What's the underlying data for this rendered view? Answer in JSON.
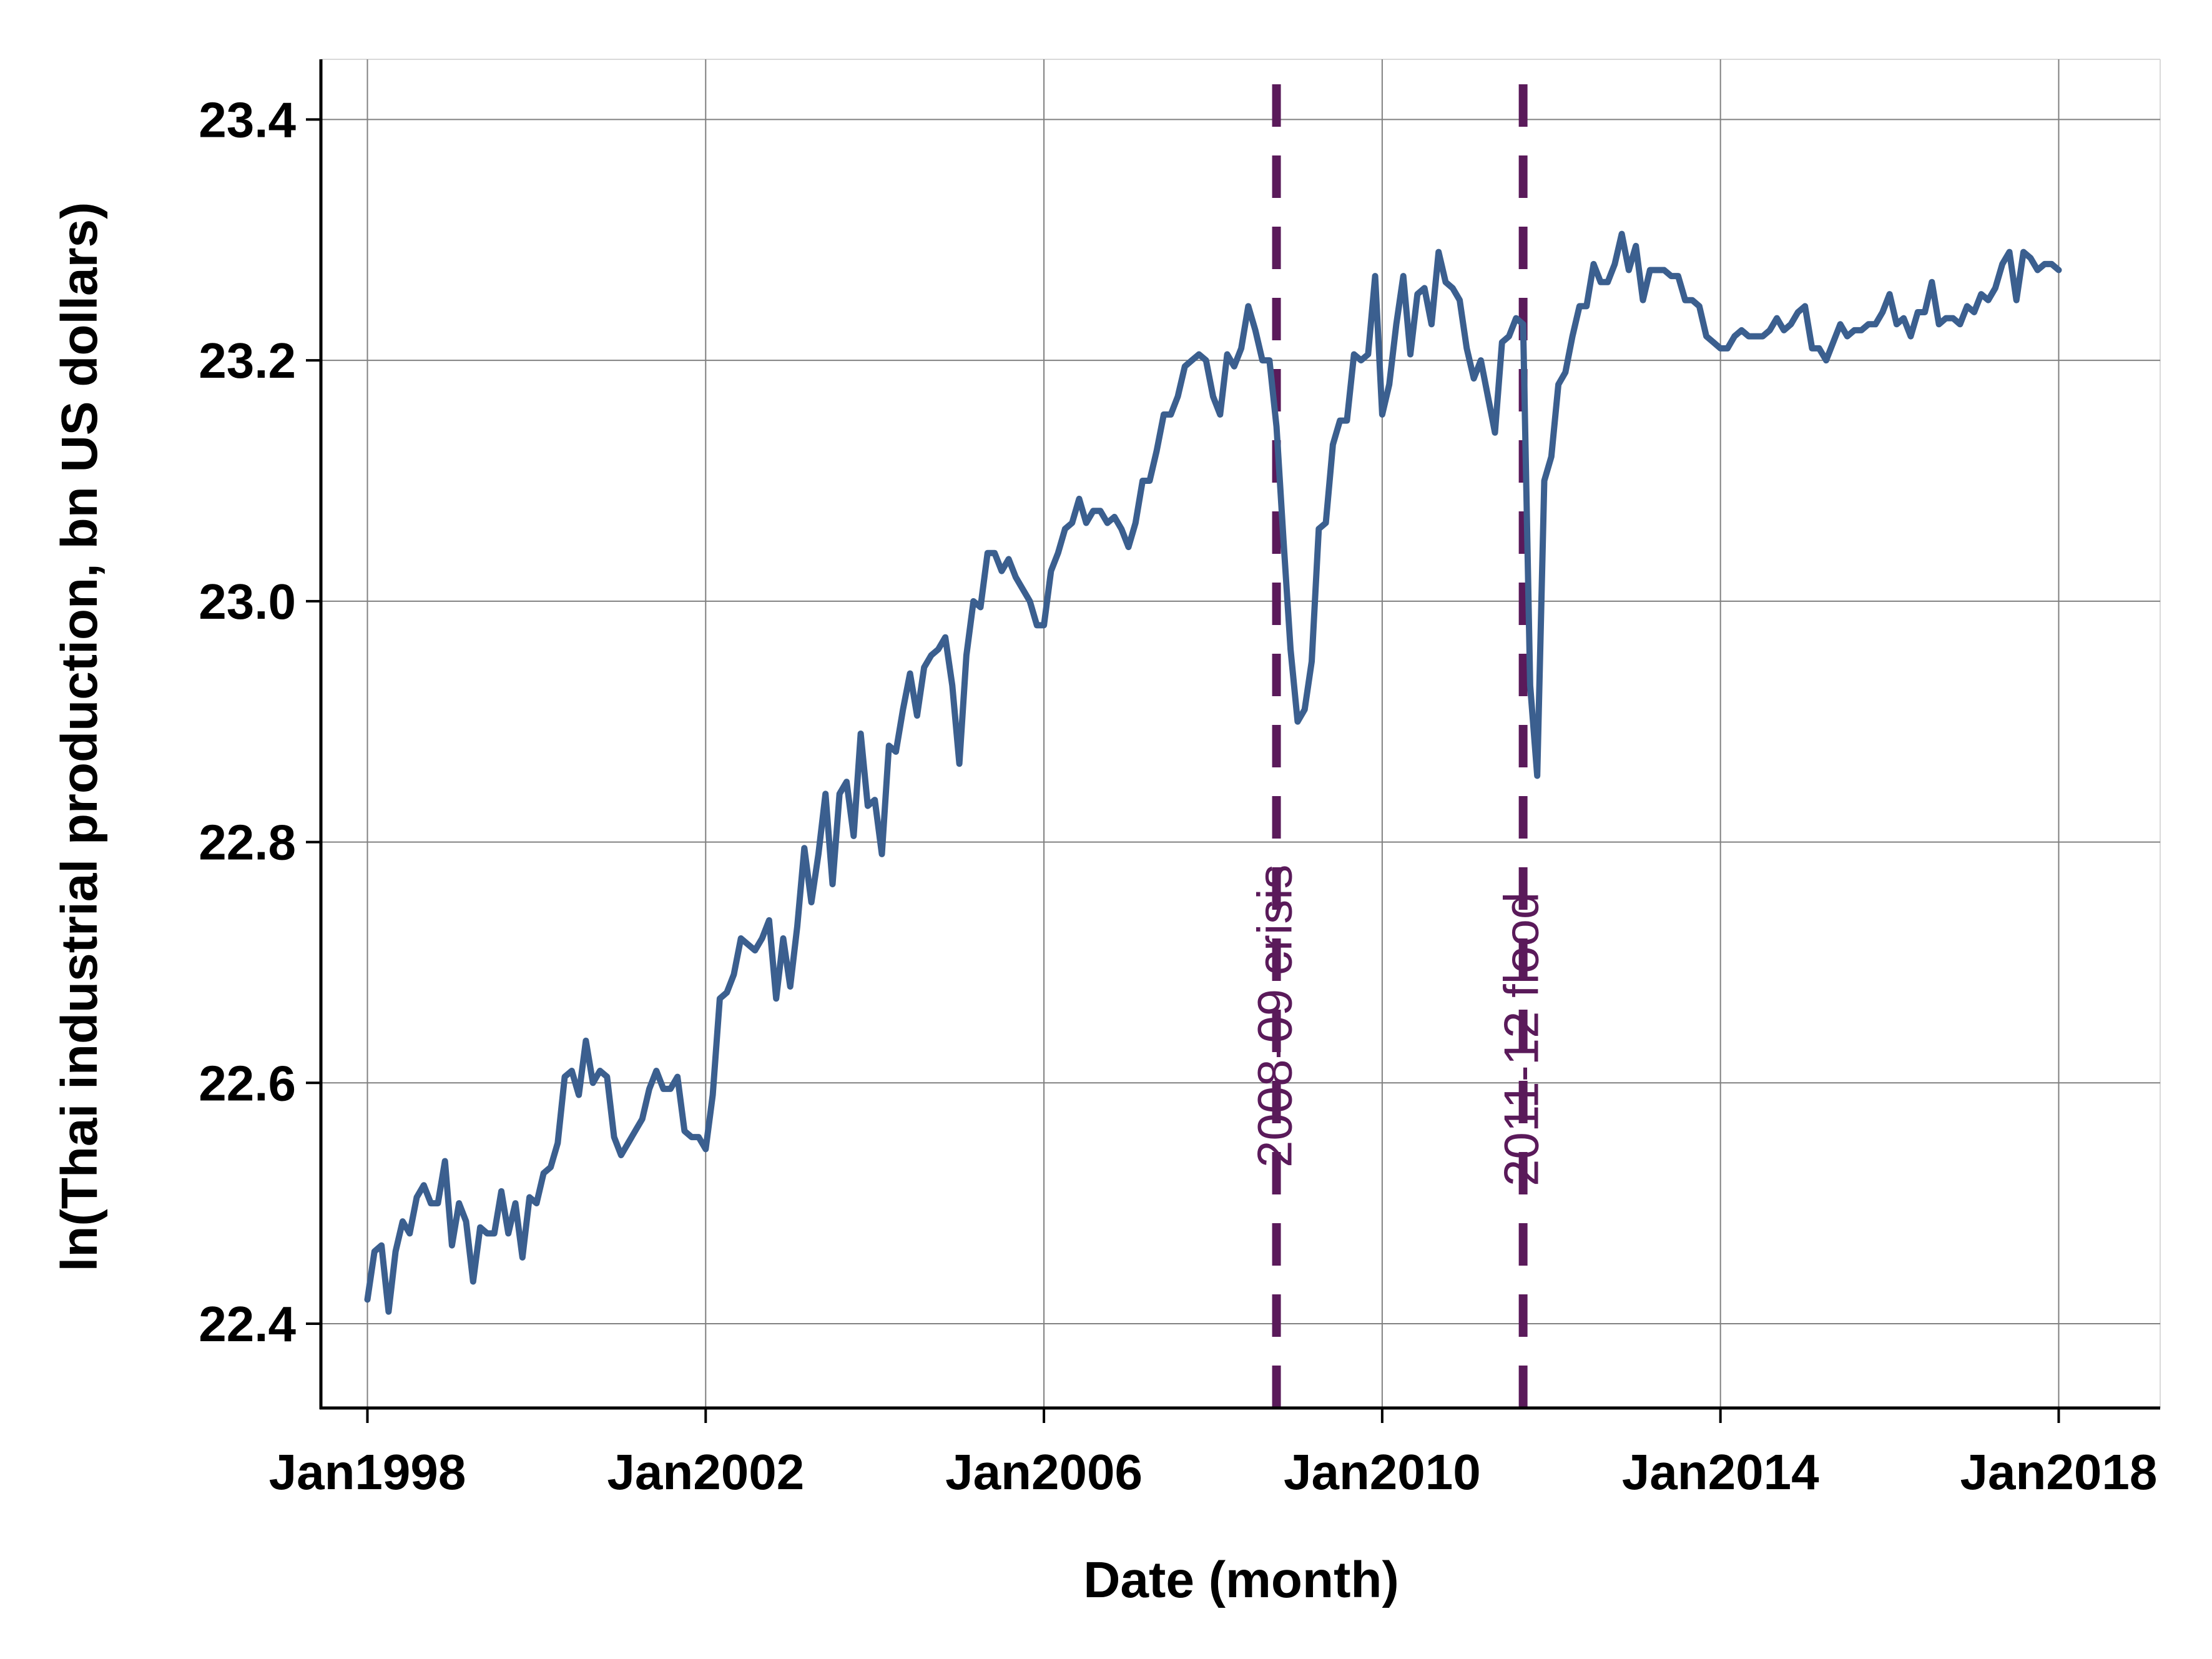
{
  "chart_data": {
    "type": "line",
    "xlabel": "Date (month)",
    "ylabel": "ln(Thai industrial production, bn US dollars)",
    "xlim": [
      "1997-07",
      "2019-03"
    ],
    "ylim": [
      22.33,
      23.45
    ],
    "x_ticks": [
      {
        "date": "1998-01",
        "label": "Jan1998"
      },
      {
        "date": "2002-01",
        "label": "Jan2002"
      },
      {
        "date": "2006-01",
        "label": "Jan2006"
      },
      {
        "date": "2010-01",
        "label": "Jan2010"
      },
      {
        "date": "2014-01",
        "label": "Jan2014"
      },
      {
        "date": "2018-01",
        "label": "Jan2018"
      }
    ],
    "y_ticks": [
      {
        "value": 22.4,
        "label": "22.4"
      },
      {
        "value": 22.6,
        "label": "22.6"
      },
      {
        "value": 22.8,
        "label": "22.8"
      },
      {
        "value": 23.0,
        "label": "23.0"
      },
      {
        "value": 23.2,
        "label": "23.2"
      },
      {
        "value": 23.4,
        "label": "23.4"
      }
    ],
    "grid": true,
    "colors": {
      "line": "#3B5F8F",
      "events": "#5A1A5A",
      "grid": "#808080",
      "axis": "#000000"
    },
    "events": [
      {
        "date": "2008-10",
        "label": "2008-09 crisis"
      },
      {
        "date": "2011-09",
        "label": "2011-12 flood"
      }
    ],
    "series": [
      {
        "start": "1998-01",
        "values": [
          22.42,
          22.46,
          22.465,
          22.41,
          22.46,
          22.485,
          22.475,
          22.505,
          22.515,
          22.5,
          22.5,
          22.535,
          22.465,
          22.5,
          22.485,
          22.435,
          22.48,
          22.475,
          22.475,
          22.51,
          22.475,
          22.5,
          22.455,
          22.505,
          22.5,
          22.525,
          22.53,
          22.55,
          22.605,
          22.61,
          22.59,
          22.635,
          22.6,
          22.61,
          22.605,
          22.555,
          22.54,
          22.55,
          22.56,
          22.57,
          22.595,
          22.61,
          22.595,
          22.595,
          22.605,
          22.56,
          22.555,
          22.555,
          22.545,
          22.59,
          22.67,
          22.675,
          22.69,
          22.72,
          22.715,
          22.71,
          22.72,
          22.735,
          22.67,
          22.72,
          22.68,
          22.73,
          22.795,
          22.75,
          22.79,
          22.84,
          22.765,
          22.84,
          22.85,
          22.805,
          22.89,
          22.83,
          22.835,
          22.79,
          22.88,
          22.875,
          22.91,
          22.94,
          22.905,
          22.945,
          22.955,
          22.96,
          22.97,
          22.93,
          22.865,
          22.955,
          23.0,
          22.995,
          23.04,
          23.04,
          23.025,
          23.035,
          23.02,
          23.01,
          23.0,
          22.98,
          22.98,
          23.025,
          23.04,
          23.06,
          23.065,
          23.085,
          23.065,
          23.075,
          23.075,
          23.065,
          23.07,
          23.06,
          23.045,
          23.065,
          23.1,
          23.1,
          23.125,
          23.155,
          23.155,
          23.17,
          23.195,
          23.2,
          23.205,
          23.2,
          23.17,
          23.155,
          23.205,
          23.195,
          23.21,
          23.245,
          23.225,
          23.2,
          23.2,
          23.145,
          23.05,
          22.96,
          22.9,
          22.91,
          22.95,
          23.06,
          23.065,
          23.13,
          23.15,
          23.15,
          23.205,
          23.2,
          23.205,
          23.27,
          23.155,
          23.18,
          23.23,
          23.27,
          23.205,
          23.255,
          23.26,
          23.23,
          23.29,
          23.265,
          23.26,
          23.25,
          23.21,
          23.185,
          23.2,
          23.17,
          23.14,
          23.215,
          23.22,
          23.235,
          23.23,
          22.93,
          22.855,
          23.1,
          23.12,
          23.18,
          23.19,
          23.22,
          23.245,
          23.245,
          23.28,
          23.265,
          23.265,
          23.28,
          23.305,
          23.275,
          23.295,
          23.25,
          23.275,
          23.275,
          23.275,
          23.27,
          23.27,
          23.25,
          23.25,
          23.245,
          23.22,
          23.215,
          23.21,
          23.21,
          23.22,
          23.225,
          23.22,
          23.22,
          23.22,
          23.225,
          23.235,
          23.225,
          23.23,
          23.24,
          23.245,
          23.21,
          23.21,
          23.2,
          23.215,
          23.23,
          23.22,
          23.225,
          23.225,
          23.23,
          23.23,
          23.24,
          23.255,
          23.23,
          23.235,
          23.22,
          23.24,
          23.24,
          23.265,
          23.23,
          23.235,
          23.235,
          23.23,
          23.245,
          23.24,
          23.255,
          23.25,
          23.26,
          23.28,
          23.29,
          23.25,
          23.29,
          23.285,
          23.275,
          23.28,
          23.28,
          23.275
        ]
      }
    ]
  }
}
